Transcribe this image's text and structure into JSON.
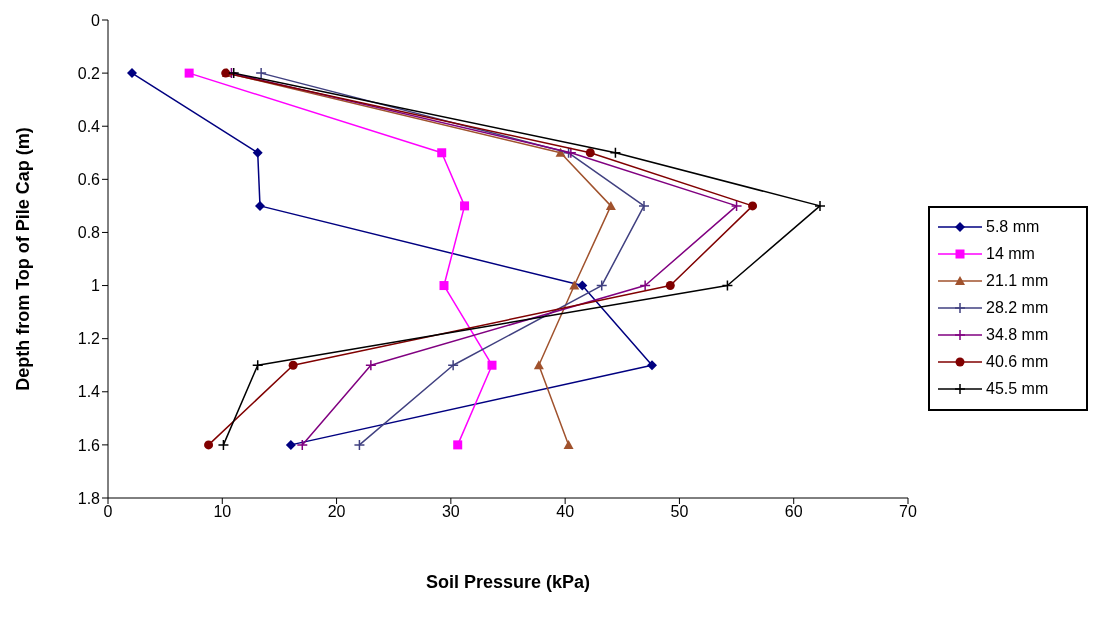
{
  "chart_data": {
    "type": "line",
    "xlabel": "Soil Pressure (kPa)",
    "ylabel": "Depth from Top of Pile Cap (m)",
    "xlim": [
      0,
      70
    ],
    "xticks": [
      0,
      10,
      20,
      30,
      40,
      50,
      60,
      70
    ],
    "ylim": [
      1.8,
      0
    ],
    "yticks": [
      0,
      0.2,
      0.4,
      0.6,
      0.8,
      1,
      1.2,
      1.4,
      1.6,
      1.8
    ],
    "legend": "right",
    "series": [
      {
        "name": "5.8 mm",
        "color": "#000080",
        "marker": "diamond",
        "x": [
          2.1,
          13.1,
          13.3,
          41.5,
          47.6,
          16.0
        ],
        "values": [
          0.2,
          0.5,
          0.7,
          1.0,
          1.3,
          1.6
        ]
      },
      {
        "name": "14 mm",
        "color": "#ff00ff",
        "marker": "square",
        "x": [
          7.1,
          29.2,
          31.2,
          29.4,
          33.6,
          30.6
        ],
        "values": [
          0.2,
          0.5,
          0.7,
          1.0,
          1.3,
          1.6
        ]
      },
      {
        "name": "21.1 mm",
        "color": "#a0522d",
        "marker": "triangle",
        "x": [
          10.4,
          39.6,
          44.0,
          40.8,
          37.7,
          40.3
        ],
        "values": [
          0.2,
          0.5,
          0.7,
          1.0,
          1.3,
          1.6
        ]
      },
      {
        "name": "28.2 mm",
        "color": "#404080",
        "marker": "cross",
        "x": [
          13.4,
          40.3,
          46.9,
          43.2,
          30.2,
          22.0
        ],
        "values": [
          0.2,
          0.5,
          0.7,
          1.0,
          1.3,
          1.6
        ]
      },
      {
        "name": "34.8 mm",
        "color": "#800080",
        "marker": "cross",
        "x": [
          10.8,
          40.5,
          55.0,
          47.0,
          23.0,
          17.0
        ],
        "values": [
          0.2,
          0.5,
          0.7,
          1.0,
          1.3,
          1.6
        ]
      },
      {
        "name": "40.6 mm",
        "color": "#800000",
        "marker": "circle",
        "x": [
          10.3,
          42.2,
          56.4,
          49.2,
          16.2,
          8.8
        ],
        "values": [
          0.2,
          0.5,
          0.7,
          1.0,
          1.3,
          1.6
        ]
      },
      {
        "name": "45.5 mm",
        "color": "#000000",
        "marker": "cross",
        "x": [
          11.0,
          44.4,
          62.3,
          54.2,
          13.1,
          10.1
        ],
        "values": [
          0.2,
          0.5,
          0.7,
          1.0,
          1.3,
          1.6
        ]
      }
    ]
  }
}
